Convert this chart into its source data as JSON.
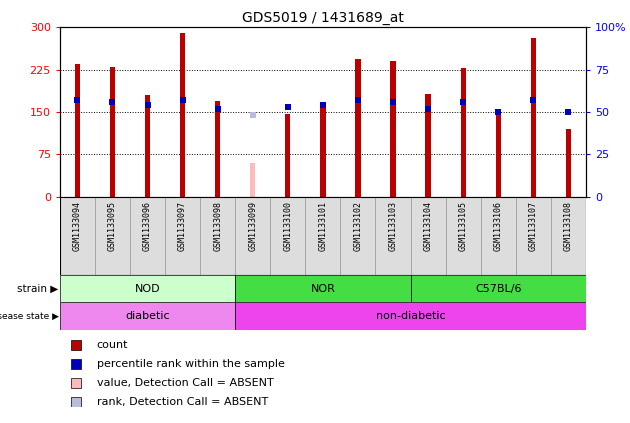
{
  "title": "GDS5019 / 1431689_at",
  "samples": [
    "GSM1133094",
    "GSM1133095",
    "GSM1133096",
    "GSM1133097",
    "GSM1133098",
    "GSM1133099",
    "GSM1133100",
    "GSM1133101",
    "GSM1133102",
    "GSM1133103",
    "GSM1133104",
    "GSM1133105",
    "GSM1133106",
    "GSM1133107",
    "GSM1133108"
  ],
  "counts": [
    235,
    230,
    180,
    290,
    170,
    null,
    147,
    163,
    245,
    240,
    182,
    228,
    152,
    282,
    120
  ],
  "absent_count": [
    null,
    null,
    null,
    null,
    null,
    60,
    null,
    null,
    null,
    null,
    null,
    null,
    null,
    null,
    null
  ],
  "percentile_ranks": [
    57,
    56,
    54,
    57,
    52,
    null,
    53,
    54,
    57,
    56,
    52,
    56,
    50,
    57,
    50
  ],
  "absent_rank": [
    null,
    null,
    null,
    null,
    null,
    48,
    null,
    null,
    null,
    null,
    null,
    null,
    null,
    null,
    null
  ],
  "ylim_left": [
    0,
    300
  ],
  "ylim_right": [
    0,
    100
  ],
  "yticks_left": [
    0,
    75,
    150,
    225,
    300
  ],
  "yticks_right": [
    0,
    25,
    50,
    75,
    100
  ],
  "ytick_labels_left": [
    "0",
    "75",
    "150",
    "225",
    "300"
  ],
  "ytick_labels_right": [
    "0",
    "25",
    "50",
    "75",
    "100%"
  ],
  "bar_color": "#bb0000",
  "absent_bar_color": "#ffbbbb",
  "rank_color": "#0000bb",
  "absent_rank_color": "#bbbbdd",
  "strain_groups": [
    {
      "label": "NOD",
      "start": 0,
      "end": 5,
      "color": "#ccffcc"
    },
    {
      "label": "NOR",
      "start": 5,
      "end": 10,
      "color": "#44dd44"
    },
    {
      "label": "C57BL/6",
      "start": 10,
      "end": 15,
      "color": "#44dd44"
    }
  ],
  "disease_groups": [
    {
      "label": "diabetic",
      "start": 0,
      "end": 5,
      "color": "#ee88ee"
    },
    {
      "label": "non-diabetic",
      "start": 5,
      "end": 15,
      "color": "#ee44ee"
    }
  ],
  "legend_items": [
    {
      "label": "count",
      "color": "#bb0000",
      "marker": "s"
    },
    {
      "label": "percentile rank within the sample",
      "color": "#0000bb",
      "marker": "s"
    },
    {
      "label": "value, Detection Call = ABSENT",
      "color": "#ffbbbb",
      "marker": "s"
    },
    {
      "label": "rank, Detection Call = ABSENT",
      "color": "#bbbbdd",
      "marker": "s"
    }
  ],
  "bar_width": 0.15,
  "rank_marker_size": 25,
  "cell_bg_color": "#dddddd",
  "plot_bg_color": "#ffffff"
}
